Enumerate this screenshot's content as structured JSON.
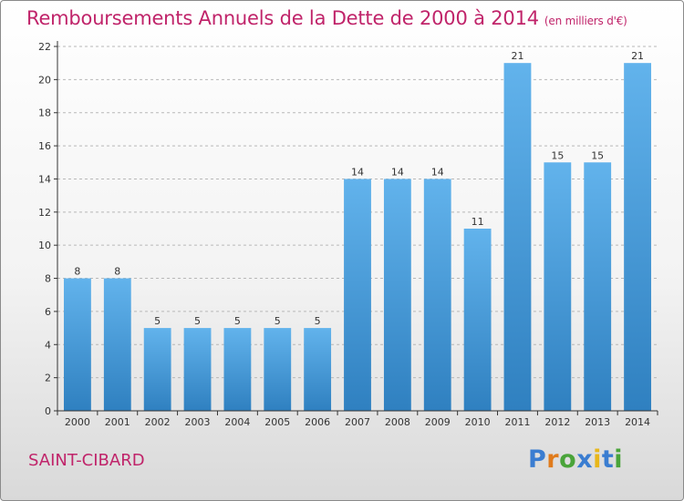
{
  "title": "Remboursements Annuels de la Dette de 2000 à 2014",
  "subtitle": "(en milliers d'€)",
  "town": "SAINT-CIBARD",
  "logo_letters": [
    "P",
    "r",
    "o",
    "x",
    "i",
    "t",
    "i"
  ],
  "colors": {
    "title": "#c0246a",
    "bar_light": "#62b3ec",
    "bar_dark": "#2f80c0",
    "axis": "#333333",
    "grid": "#b8b8b8"
  },
  "chart_data": {
    "type": "bar",
    "categories": [
      "2000",
      "2001",
      "2002",
      "2003",
      "2004",
      "2005",
      "2006",
      "2007",
      "2008",
      "2009",
      "2010",
      "2011",
      "2012",
      "2013",
      "2014"
    ],
    "values": [
      8,
      8,
      5,
      5,
      5,
      5,
      5,
      14,
      14,
      14,
      11,
      21,
      15,
      15,
      21
    ],
    "ylim": [
      0,
      22
    ],
    "yticks": [
      0,
      2,
      4,
      6,
      8,
      10,
      12,
      14,
      16,
      18,
      20,
      22
    ],
    "grid": true,
    "data_labels": true
  }
}
